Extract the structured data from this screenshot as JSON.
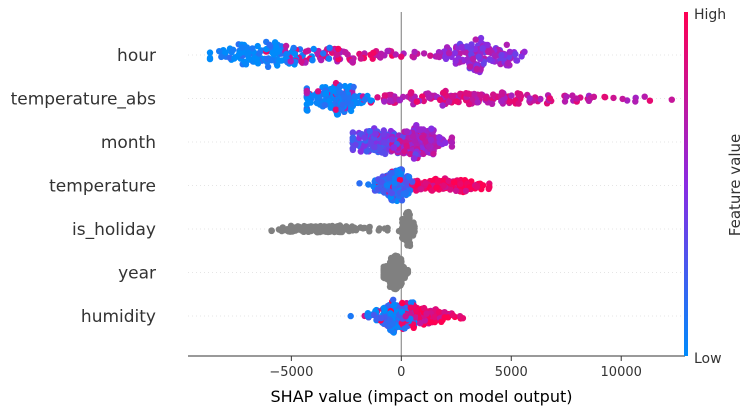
{
  "chart_data": {
    "type": "scatter",
    "subtype": "shap-beeswarm",
    "title": "",
    "xlabel": "SHAP value (impact on model output)",
    "xlim": [
      -9700,
      12900
    ],
    "xticks": [
      -5000,
      0,
      5000,
      10000
    ],
    "xtick_labels": [
      "−5000",
      "0",
      "5000",
      "10000"
    ],
    "grid": false,
    "colorbar": {
      "title": "Feature value",
      "high_label": "High",
      "low_label": "Low",
      "low_color": "#008bfb",
      "high_color": "#ff0052",
      "mid_color": "#8a2be2"
    },
    "missing_color": "#808080",
    "features": [
      {
        "name": "hour",
        "min": -8700,
        "max": 5600,
        "clusters": [
          {
            "x": -6200,
            "sd": 1100,
            "w": 0.35,
            "c": 0.0
          },
          {
            "x": -2500,
            "sd": 1500,
            "w": 0.25,
            "c": 0.8
          },
          {
            "x": 3600,
            "sd": 900,
            "w": 0.4,
            "c": 0.55
          }
        ]
      },
      {
        "name": "temperature_abs",
        "min": -4300,
        "max": 12300,
        "clusters": [
          {
            "x": -3000,
            "sd": 700,
            "w": 0.45,
            "c": 0.0
          },
          {
            "x": 3000,
            "sd": 3000,
            "w": 0.55,
            "c": 0.75
          }
        ]
      },
      {
        "name": "month",
        "min": -2200,
        "max": 2300,
        "clusters": [
          {
            "x": -1300,
            "sd": 600,
            "w": 0.4,
            "c": 0.35
          },
          {
            "x": 700,
            "sd": 700,
            "w": 0.6,
            "c": 0.65
          }
        ]
      },
      {
        "name": "temperature",
        "min": -1900,
        "max": 4000,
        "clusters": [
          {
            "x": -300,
            "sd": 400,
            "w": 0.55,
            "c": 0.15
          },
          {
            "x": 1800,
            "sd": 1100,
            "w": 0.45,
            "c": 0.95
          }
        ]
      },
      {
        "name": "is_holiday",
        "min": -5900,
        "max": 600,
        "clusters": [
          {
            "x": -3600,
            "sd": 1200,
            "w": 0.45,
            "c": -1
          },
          {
            "x": 300,
            "sd": 150,
            "w": 0.55,
            "c": -1
          }
        ]
      },
      {
        "name": "year",
        "min": -800,
        "max": 300,
        "clusters": [
          {
            "x": -300,
            "sd": 250,
            "w": 1.0,
            "c": -1
          }
        ]
      },
      {
        "name": "humidity",
        "min": -2300,
        "max": 2800,
        "clusters": [
          {
            "x": -400,
            "sd": 500,
            "w": 0.45,
            "c": 0.1
          },
          {
            "x": 800,
            "sd": 800,
            "w": 0.55,
            "c": 0.9
          }
        ]
      }
    ]
  }
}
